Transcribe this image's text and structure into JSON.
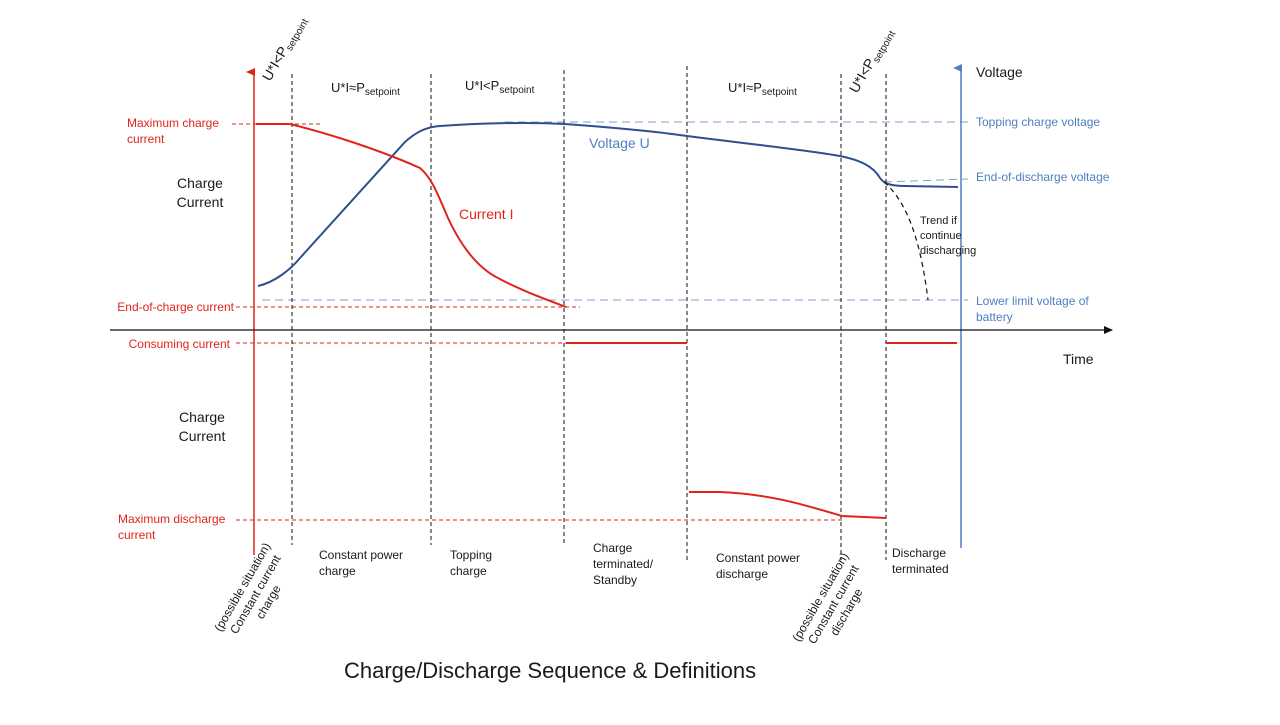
{
  "title": "Charge/Discharge Sequence & Definitions",
  "colors": {
    "current": "#e0241b",
    "voltage": "#2f4f8f",
    "voltage_label": "#4f7fbf",
    "guide_blue": "#7f9fcf",
    "text": "#1a1a1a"
  },
  "axes": {
    "left_upper_label": [
      "Charge",
      "Current"
    ],
    "left_lower_label": [
      "Charge",
      "Current"
    ],
    "right_label": "Voltage",
    "x_label": "Time"
  },
  "left_levels": {
    "max_charge": [
      "Maximum charge",
      "current"
    ],
    "end_of_charge": "End-of-charge current",
    "consuming": "Consuming  current",
    "max_discharge": [
      "Maximum discharge",
      "current"
    ]
  },
  "right_levels": {
    "topping": "Topping charge voltage",
    "end_of_discharge": "End-of-discharge voltage",
    "lower_limit": [
      "Lower limit voltage of",
      "battery"
    ]
  },
  "curve_labels": {
    "voltage": "Voltage U",
    "current": "Current I",
    "trend": [
      "Trend if",
      "continue",
      "discharging"
    ]
  },
  "top_labels": {
    "ui_less": "U*I<P",
    "ui_approx": "U*I≈P",
    "sub": "setpoint"
  },
  "phases": [
    {
      "id": "cc-charge",
      "lines": [
        "(possible situation)",
        "Constant current",
        "charge"
      ]
    },
    {
      "id": "cp-charge",
      "lines": [
        "Constant power",
        "charge"
      ]
    },
    {
      "id": "topping",
      "lines": [
        "Topping",
        "charge"
      ]
    },
    {
      "id": "standby",
      "lines": [
        "Charge",
        "terminated/",
        "Standby"
      ]
    },
    {
      "id": "cp-discharge",
      "lines": [
        "Constant power",
        "discharge"
      ]
    },
    {
      "id": "cc-discharge",
      "lines": [
        "(possible situation)",
        "Constant current",
        "discharge"
      ]
    },
    {
      "id": "discharge-terminated",
      "lines": [
        "Discharge",
        "terminated"
      ]
    }
  ]
}
